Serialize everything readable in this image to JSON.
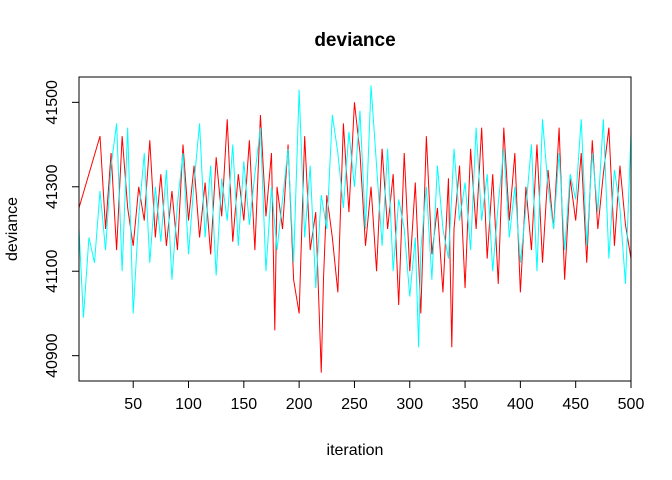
{
  "chart_data": {
    "type": "line",
    "title": "deviance",
    "xlabel": "iteration",
    "ylabel": "deviance",
    "xlim": [
      1,
      500
    ],
    "ylim": [
      40840,
      41560
    ],
    "xticks": [
      50,
      100,
      150,
      200,
      250,
      300,
      350,
      400,
      450,
      500
    ],
    "yticks": [
      40900,
      41100,
      41300,
      41500
    ],
    "grid": false,
    "legend": "none",
    "series": [
      {
        "color": "#ff0000",
        "x": [
          1,
          20,
          25,
          30,
          35,
          40,
          45,
          50,
          55,
          60,
          65,
          70,
          75,
          80,
          85,
          90,
          95,
          100,
          105,
          110,
          115,
          120,
          125,
          130,
          135,
          140,
          145,
          150,
          155,
          160,
          165,
          170,
          175,
          178,
          180,
          185,
          190,
          195,
          200,
          205,
          210,
          215,
          220,
          222,
          225,
          230,
          235,
          240,
          245,
          250,
          255,
          260,
          265,
          270,
          275,
          280,
          285,
          290,
          295,
          300,
          305,
          310,
          315,
          320,
          325,
          330,
          335,
          338,
          340,
          345,
          350,
          355,
          360,
          365,
          370,
          375,
          380,
          385,
          390,
          395,
          400,
          405,
          410,
          415,
          420,
          425,
          430,
          435,
          440,
          445,
          450,
          455,
          460,
          465,
          470,
          475,
          480,
          485,
          490,
          495,
          500
        ],
        "values": [
          41250,
          41420,
          41200,
          41380,
          41150,
          41420,
          41250,
          41160,
          41300,
          41220,
          41410,
          41180,
          41330,
          41160,
          41290,
          41150,
          41400,
          41220,
          41350,
          41180,
          41310,
          41140,
          41370,
          41230,
          41460,
          41170,
          41330,
          41220,
          41410,
          41150,
          41470,
          41230,
          41380,
          40960,
          41300,
          41200,
          41400,
          41080,
          41000,
          41420,
          41150,
          41240,
          40860,
          41080,
          41280,
          41180,
          41050,
          41450,
          41240,
          41500,
          41380,
          41160,
          41300,
          41100,
          41390,
          41200,
          41330,
          41020,
          41380,
          41100,
          41310,
          41000,
          41420,
          41140,
          41250,
          41050,
          41320,
          40920,
          41200,
          41350,
          41060,
          41390,
          41200,
          41440,
          41130,
          41330,
          41070,
          41440,
          41220,
          41380,
          41050,
          41300,
          41150,
          41400,
          41120,
          41340,
          41200,
          41440,
          41080,
          41320,
          41220,
          41380,
          41120,
          41410,
          41200,
          41330,
          41440,
          41160,
          41350,
          41210,
          41130
        ]
      },
      {
        "color": "#00ffff",
        "x": [
          1,
          5,
          10,
          15,
          20,
          25,
          30,
          35,
          40,
          45,
          50,
          55,
          60,
          65,
          70,
          75,
          80,
          85,
          90,
          95,
          100,
          105,
          110,
          115,
          120,
          125,
          130,
          135,
          140,
          145,
          150,
          155,
          160,
          165,
          170,
          175,
          180,
          185,
          190,
          195,
          200,
          205,
          210,
          215,
          220,
          225,
          230,
          235,
          240,
          245,
          250,
          255,
          260,
          265,
          270,
          275,
          280,
          285,
          290,
          295,
          300,
          305,
          308,
          310,
          315,
          320,
          325,
          330,
          335,
          340,
          345,
          350,
          355,
          360,
          365,
          370,
          375,
          380,
          385,
          390,
          395,
          400,
          405,
          410,
          415,
          420,
          425,
          430,
          435,
          440,
          445,
          450,
          455,
          460,
          465,
          470,
          475,
          480,
          485,
          490,
          495,
          500
        ],
        "values": [
          41200,
          40990,
          41180,
          41120,
          41290,
          41150,
          41350,
          41450,
          41100,
          41440,
          41000,
          41230,
          41380,
          41120,
          41300,
          41170,
          41340,
          41080,
          41260,
          41380,
          41140,
          41310,
          41450,
          41180,
          41350,
          41090,
          41320,
          41220,
          41400,
          41160,
          41360,
          41210,
          41330,
          41440,
          41100,
          41300,
          41150,
          41270,
          41390,
          41120,
          41530,
          41180,
          41350,
          41060,
          41280,
          41200,
          41470,
          41380,
          41250,
          41430,
          41300,
          41480,
          41200,
          41540,
          41350,
          41160,
          41390,
          41100,
          41270,
          41200,
          41040,
          41180,
          40920,
          41150,
          41300,
          41080,
          41350,
          41200,
          41130,
          41390,
          41220,
          41310,
          41150,
          41440,
          41220,
          41330,
          41100,
          41260,
          41390,
          41180,
          41300,
          41120,
          41250,
          41400,
          41100,
          41460,
          41300,
          41200,
          41380,
          41150,
          41330,
          41270,
          41460,
          41160,
          41380,
          41240,
          41460,
          41130,
          41340,
          41250,
          41070,
          41430
        ]
      }
    ]
  }
}
